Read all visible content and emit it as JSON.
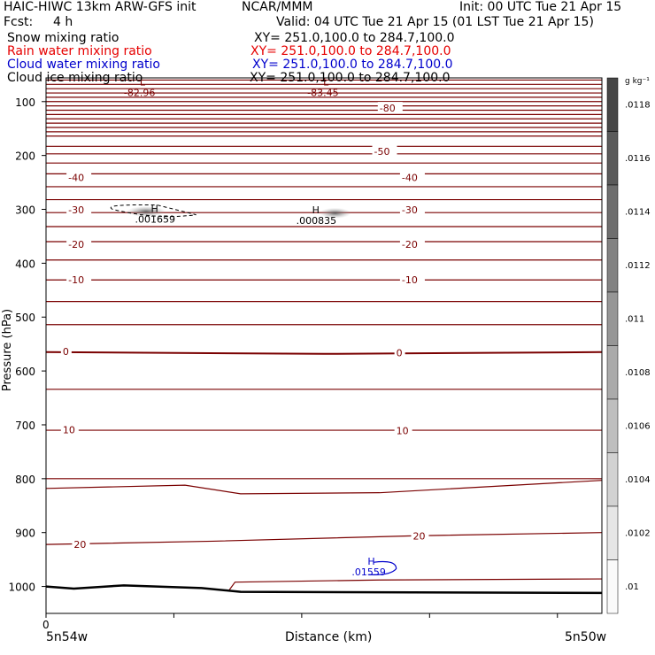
{
  "header": {
    "title_left": "HAIC-HIWC 13km ARW-GFS init",
    "center_org": "NCAR/MMM",
    "init_text": "Init: 00 UTC Tue 21 Apr 15",
    "fcst_label": "Fcst:",
    "fcst_value": "4 h",
    "valid_text": "Valid: 04 UTC Tue 21 Apr 15 (01 LST Tue 21 Apr 15)"
  },
  "fields": [
    {
      "name": "Snow mixing ratio",
      "xy": "XY= 251.0,100.0 to 284.7,100.0",
      "color": "#000000"
    },
    {
      "name": "Rain water mixing ratio",
      "xy": "XY= 251.0,100.0 to 284.7,100.0",
      "color": "#e60000"
    },
    {
      "name": "Cloud water mixing ratio",
      "xy": "XY= 251.0,100.0 to 284.7,100.0",
      "color": "#0000cc"
    },
    {
      "name": "Cloud ice mixing ratio",
      "xy": "XY= 251.0,100.0 to 284.7,100.0",
      "color": "#000000"
    }
  ],
  "colors": {
    "temperature_contour": "#7a0000",
    "ground": "#000000",
    "cloud_water": "#0000cc"
  },
  "chart_data": {
    "type": "cross-section",
    "xlabel": "Distance (km)",
    "ylabel": "Pressure (hPa)",
    "x_start_label": "5n54w",
    "x_end_label": "5n50w",
    "x_zero_label": "0",
    "ylim": [
      1050,
      50
    ],
    "yticks": [
      100,
      200,
      300,
      400,
      500,
      600,
      700,
      800,
      900,
      1000
    ],
    "ytick_labels": [
      "100",
      "200",
      "300",
      "400",
      "500",
      "600",
      "700",
      "800",
      "900",
      "1000"
    ],
    "contour_values": [
      "-80",
      "-50",
      "-40",
      "-30",
      "-20",
      "-10",
      "0",
      "10",
      "20"
    ],
    "contour_labels": [
      {
        "text": "-80",
        "x": 0.6,
        "p": 112
      },
      {
        "text": "-50",
        "x": 0.59,
        "p": 192
      },
      {
        "text": "-40",
        "x": 0.04,
        "p": 241
      },
      {
        "text": "-40",
        "x": 0.64,
        "p": 241
      },
      {
        "text": "-30",
        "x": 0.04,
        "p": 301
      },
      {
        "text": "-30",
        "x": 0.64,
        "p": 301
      },
      {
        "text": "-20",
        "x": 0.04,
        "p": 365
      },
      {
        "text": "-20",
        "x": 0.64,
        "p": 365
      },
      {
        "text": "-10",
        "x": 0.04,
        "p": 431
      },
      {
        "text": "-10",
        "x": 0.64,
        "p": 431
      },
      {
        "text": "0",
        "x": 0.03,
        "p": 564
      },
      {
        "text": "0",
        "x": 0.63,
        "p": 566
      },
      {
        "text": "10",
        "x": 0.03,
        "p": 709
      },
      {
        "text": "10",
        "x": 0.63,
        "p": 711
      },
      {
        "text": "20",
        "x": 0.05,
        "p": 922
      },
      {
        "text": "20",
        "x": 0.66,
        "p": 906
      }
    ],
    "extrema": [
      {
        "kind": "L",
        "value": "-82.96",
        "x": 0.14,
        "p": 70
      },
      {
        "kind": "L",
        "value": "-83.45",
        "x": 0.47,
        "p": 70
      },
      {
        "kind": "H",
        "value": ".001659",
        "x": 0.16,
        "p": 305
      },
      {
        "kind": "H",
        "value": ".000835",
        "x": 0.45,
        "p": 307
      },
      {
        "kind": "H",
        "value": ".01559",
        "x": 0.55,
        "p": 960
      }
    ],
    "colorbar": {
      "unit": "g kg⁻¹",
      "labels": [
        ".0118",
        ".0116",
        ".0114",
        ".0112",
        ".011",
        ".0108",
        ".0106",
        ".0104",
        ".0102",
        ".01"
      ]
    },
    "grid": "horizontal contours only"
  }
}
